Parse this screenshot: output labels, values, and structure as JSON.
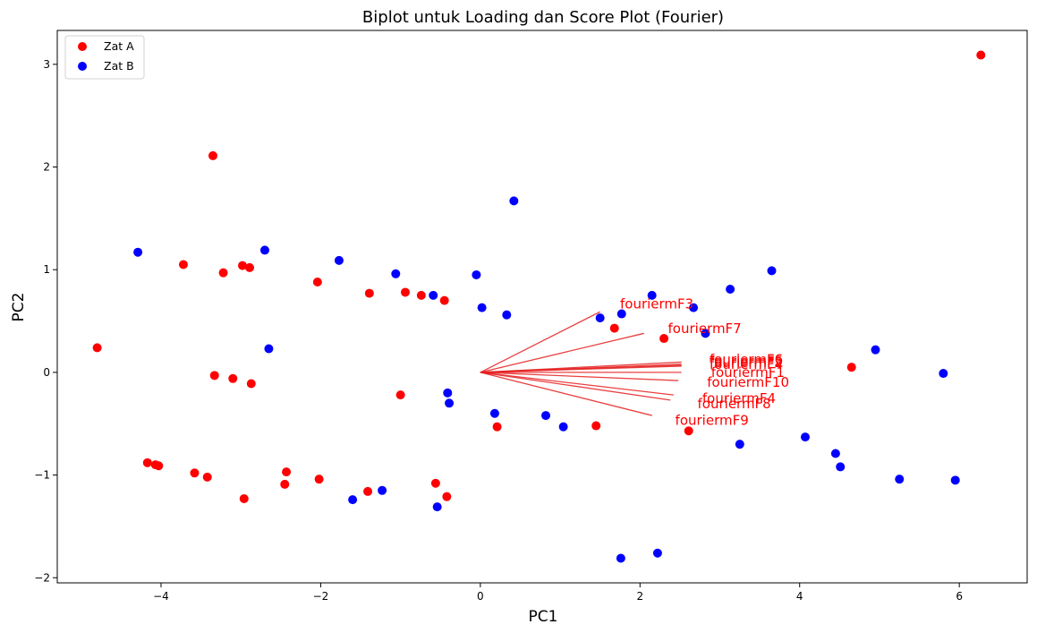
{
  "chart_data": {
    "type": "scatter",
    "title": "Biplot untuk Loading dan Score Plot (Fourier)",
    "xlabel": "PC1",
    "ylabel": "PC2",
    "xlim": [
      -5.3,
      6.85
    ],
    "ylim": [
      -2.05,
      3.33
    ],
    "xticks": [
      -4,
      -2,
      0,
      2,
      4,
      6
    ],
    "yticks": [
      -2,
      -1,
      0,
      1,
      2,
      3
    ],
    "legend_position": "top-left",
    "grid": false,
    "series": [
      {
        "name": "Zat A",
        "color": "#ff0000",
        "points": [
          [
            -4.8,
            0.24
          ],
          [
            -4.17,
            -0.88
          ],
          [
            -4.07,
            -0.9
          ],
          [
            -4.03,
            -0.91
          ],
          [
            -3.72,
            1.05
          ],
          [
            -3.58,
            -0.98
          ],
          [
            -3.42,
            -1.02
          ],
          [
            -3.35,
            2.11
          ],
          [
            -3.33,
            -0.03
          ],
          [
            -3.22,
            0.97
          ],
          [
            -3.1,
            -0.06
          ],
          [
            -2.98,
            1.04
          ],
          [
            -2.96,
            -1.23
          ],
          [
            -2.89,
            1.02
          ],
          [
            -2.87,
            -0.11
          ],
          [
            -2.43,
            -0.97
          ],
          [
            -2.45,
            -1.09
          ],
          [
            -2.04,
            0.88
          ],
          [
            -2.02,
            -1.04
          ],
          [
            -1.39,
            0.77
          ],
          [
            -1.41,
            -1.16
          ],
          [
            -1.0,
            -0.22
          ],
          [
            -0.94,
            0.78
          ],
          [
            -0.74,
            0.75
          ],
          [
            -0.56,
            -1.08
          ],
          [
            -0.45,
            0.7
          ],
          [
            -0.42,
            -1.21
          ],
          [
            0.21,
            -0.53
          ],
          [
            1.45,
            -0.52
          ],
          [
            1.68,
            0.43
          ],
          [
            2.3,
            0.33
          ],
          [
            2.61,
            -0.57
          ],
          [
            4.65,
            0.05
          ],
          [
            6.27,
            3.09
          ]
        ]
      },
      {
        "name": "Zat B",
        "color": "#0000ff",
        "points": [
          [
            -4.29,
            1.17
          ],
          [
            -2.7,
            1.19
          ],
          [
            -2.65,
            0.23
          ],
          [
            -1.77,
            1.09
          ],
          [
            -1.6,
            -1.24
          ],
          [
            -1.23,
            -1.15
          ],
          [
            -1.06,
            0.96
          ],
          [
            -0.59,
            0.75
          ],
          [
            -0.54,
            -1.31
          ],
          [
            -0.41,
            -0.2
          ],
          [
            -0.39,
            -0.3
          ],
          [
            -0.05,
            0.95
          ],
          [
            0.02,
            0.63
          ],
          [
            0.18,
            -0.4
          ],
          [
            0.33,
            0.56
          ],
          [
            0.42,
            1.67
          ],
          [
            0.82,
            -0.42
          ],
          [
            1.04,
            -0.53
          ],
          [
            1.5,
            0.53
          ],
          [
            1.77,
            0.57
          ],
          [
            1.76,
            -1.81
          ],
          [
            2.15,
            0.75
          ],
          [
            2.22,
            -1.76
          ],
          [
            2.67,
            0.63
          ],
          [
            2.82,
            0.38
          ],
          [
            3.13,
            0.81
          ],
          [
            3.25,
            -0.7
          ],
          [
            3.65,
            0.99
          ],
          [
            4.07,
            -0.63
          ],
          [
            4.45,
            -0.79
          ],
          [
            4.51,
            -0.92
          ],
          [
            4.95,
            0.22
          ],
          [
            5.25,
            -1.04
          ],
          [
            5.8,
            -0.01
          ],
          [
            5.95,
            -1.05
          ]
        ]
      }
    ],
    "loadings": {
      "color": "#e52020",
      "vectors": [
        {
          "label": "fouriermF3",
          "end": [
            1.5,
            0.59
          ],
          "label_at": [
            1.75,
            0.66
          ]
        },
        {
          "label": "fouriermF7",
          "end": [
            2.05,
            0.38
          ],
          "label_at": [
            2.35,
            0.42
          ]
        },
        {
          "label": "fouriermF6",
          "end": [
            2.52,
            0.1
          ],
          "label_at": [
            2.87,
            0.12
          ]
        },
        {
          "label": "fouriermF5",
          "end": [
            2.52,
            0.08
          ],
          "label_at": [
            2.87,
            0.105
          ]
        },
        {
          "label": "fouriermF2",
          "end": [
            2.52,
            0.07
          ],
          "label_at": [
            2.87,
            0.09
          ]
        },
        {
          "label": "fouriermF4",
          "end": [
            2.52,
            0.06
          ],
          "label_at": [
            2.87,
            0.075
          ]
        },
        {
          "label": "fouriermF1",
          "end": [
            2.52,
            0.0
          ],
          "label_at": [
            2.89,
            -0.005
          ]
        },
        {
          "label": "fouriermF10",
          "end": [
            2.48,
            -0.08
          ],
          "label_at": [
            2.84,
            -0.1
          ]
        },
        {
          "label": "fouriermF4",
          "end": [
            2.42,
            -0.22
          ],
          "label_at": [
            2.78,
            -0.26
          ]
        },
        {
          "label": "fouriermF8",
          "end": [
            2.38,
            -0.27
          ],
          "label_at": [
            2.72,
            -0.31
          ]
        },
        {
          "label": "fouriermF9",
          "end": [
            2.15,
            -0.42
          ],
          "label_at": [
            2.44,
            -0.47
          ]
        }
      ]
    }
  }
}
